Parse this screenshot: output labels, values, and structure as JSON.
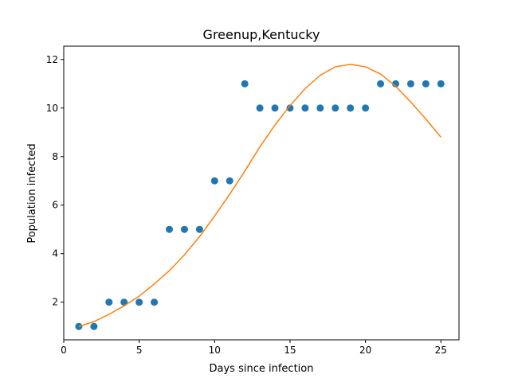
{
  "chart_data": {
    "type": "scatter",
    "title": "Greenup,Kentucky",
    "xlabel": "Days since infection",
    "ylabel": "Population infected",
    "xlim": [
      0,
      26.2
    ],
    "ylim": [
      0.45,
      12.55
    ],
    "xticks": [
      0,
      5,
      10,
      15,
      20,
      25
    ],
    "yticks": [
      2,
      4,
      6,
      8,
      10,
      12
    ],
    "grid": false,
    "series": [
      {
        "kind": "scatter",
        "color": "#1f77b4",
        "x": [
          1,
          2,
          3,
          4,
          5,
          6,
          7,
          8,
          9,
          10,
          11,
          12,
          13,
          14,
          15,
          16,
          17,
          18,
          19,
          20,
          21,
          22,
          23,
          24,
          25
        ],
        "y": [
          1,
          1,
          2,
          2,
          2,
          2,
          5,
          5,
          5,
          7,
          7,
          11,
          10,
          10,
          10,
          10,
          10,
          10,
          10,
          10,
          11,
          11,
          11,
          11,
          11
        ]
      },
      {
        "kind": "line",
        "color": "#ff7f0e",
        "x": [
          1,
          2,
          3,
          4,
          5,
          6,
          7,
          8,
          9,
          10,
          11,
          12,
          13,
          14,
          15,
          16,
          17,
          18,
          19,
          20,
          21,
          22,
          23,
          24,
          25
        ],
        "y": [
          1.0,
          1.2,
          1.5,
          1.85,
          2.25,
          2.75,
          3.3,
          3.95,
          4.7,
          5.55,
          6.45,
          7.4,
          8.4,
          9.3,
          10.1,
          10.8,
          11.35,
          11.7,
          11.8,
          11.7,
          11.4,
          10.9,
          10.25,
          9.55,
          8.8
        ]
      }
    ]
  }
}
